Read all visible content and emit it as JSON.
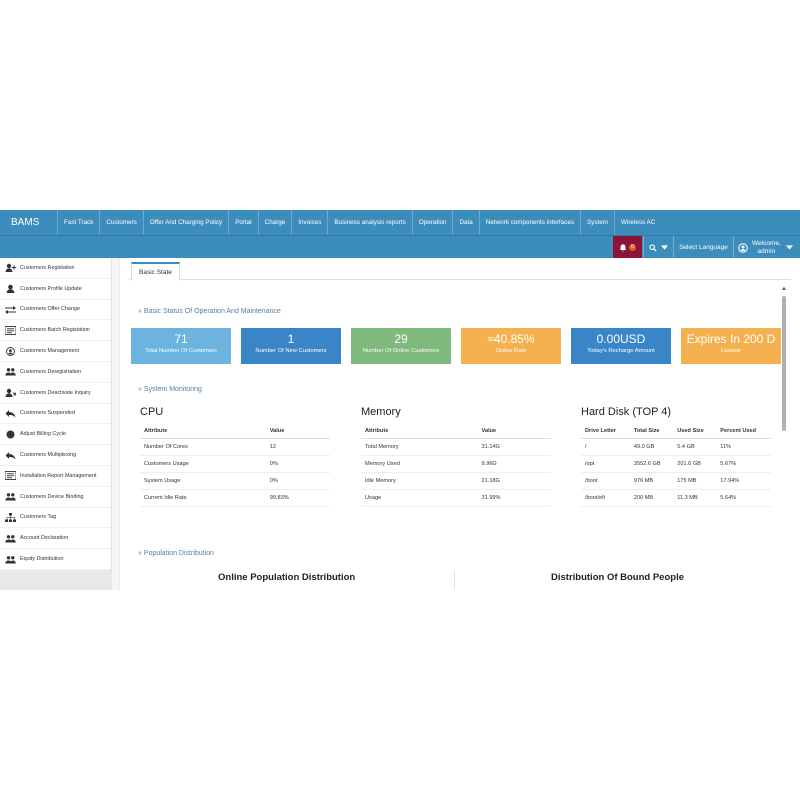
{
  "app": {
    "brand": "BAMS"
  },
  "nav": [
    "Fast Track",
    "Customers",
    "Offer And Charging Policy",
    "Portal",
    "Charge",
    "Invoices",
    "Business analysis reports",
    "Operation",
    "Data",
    "Network components interfaces",
    "System",
    "Wireless AC"
  ],
  "header": {
    "notification_count": "0",
    "language_label": "Select Language",
    "welcome_label": "Welcome,",
    "user_name": "admin"
  },
  "sidebar": {
    "items": [
      {
        "label": "Customers Registation",
        "icon": "user-add-icon"
      },
      {
        "label": "Customers Profile Update",
        "icon": "user-icon"
      },
      {
        "label": "Customers Offer Change",
        "icon": "exchange-icon"
      },
      {
        "label": "Customers Batch Registation",
        "icon": "list-icon"
      },
      {
        "label": "Customers Management",
        "icon": "user-circle-icon"
      },
      {
        "label": "Customers Deregistration",
        "icon": "users-icon"
      },
      {
        "label": "Customers Deactivate Inquiry",
        "icon": "user-x-icon"
      },
      {
        "label": "Customers Suspended",
        "icon": "reply-icon"
      },
      {
        "label": "Adjust Billing Cycle",
        "icon": "circle-icon"
      },
      {
        "label": "Customers Multiplexing",
        "icon": "reply-icon"
      },
      {
        "label": "Installation Report Management",
        "icon": "list-icon"
      },
      {
        "label": "Customers Device Binding",
        "icon": "users-icon"
      },
      {
        "label": "Customers Tag",
        "icon": "sitemap-icon"
      },
      {
        "label": "Account Declaration",
        "icon": "users-icon"
      },
      {
        "label": "Equity Distribution",
        "icon": "users-icon"
      }
    ]
  },
  "tabs": {
    "active": "Basic State"
  },
  "sections": {
    "basic_status": "Basic Status Of Operation And Maintenance",
    "system_monitoring": "System Monitoring",
    "population": "Population Distribution"
  },
  "cards": [
    {
      "value": "71",
      "label": "Total Number Of Customers",
      "color": "#6cb3e0"
    },
    {
      "value": "1",
      "label": "Number Of New Customers",
      "color": "#3a85c8"
    },
    {
      "value": "29",
      "label": "Number Of Online Customers",
      "color": "#7fb97c"
    },
    {
      "value": "≈40.85%",
      "label": "Online Rate",
      "color": "#f5b14f"
    },
    {
      "value": "0.00USD",
      "label": "Today's Recharge Amount",
      "color": "#3a85c8"
    },
    {
      "value": "Expires In 200 D",
      "label": "License",
      "color": "#f5b14f"
    }
  ],
  "cpu": {
    "title": "CPU",
    "headers": [
      "Attribute",
      "Value"
    ],
    "rows": [
      [
        "Number Of Cores",
        "12"
      ],
      [
        "Customers Usage",
        "0%"
      ],
      [
        "System Usage",
        "0%"
      ],
      [
        "Current Idle Rate",
        "99.83%"
      ]
    ]
  },
  "memory": {
    "title": "Memory",
    "headers": [
      "Attribute",
      "Value"
    ],
    "rows": [
      [
        "Total Memory",
        "31.14G"
      ],
      [
        "Memory Used",
        "9.96G"
      ],
      [
        "Idle Memory",
        "21.18G"
      ],
      [
        "Usage",
        "31.99%"
      ]
    ]
  },
  "disk": {
    "title": "Hard Disk (TOP 4)",
    "headers": [
      "Drive Letter",
      "Total Size",
      "Used Size",
      "Percent Used"
    ],
    "rows": [
      [
        "/",
        "49.0 GB",
        "5.4 GB",
        "11%"
      ],
      [
        "/opt",
        "3552.6 GB",
        "201.6 GB",
        "5.67%"
      ],
      [
        "/boot",
        "976 MB",
        "175 MB",
        "17.94%"
      ],
      [
        "/boot/efi",
        "200 MB",
        "11.3 MB",
        "5.64%"
      ]
    ]
  },
  "distribution": {
    "online_title": "Online Population Distribution",
    "bound_title": "Distribution Of Bound People"
  }
}
